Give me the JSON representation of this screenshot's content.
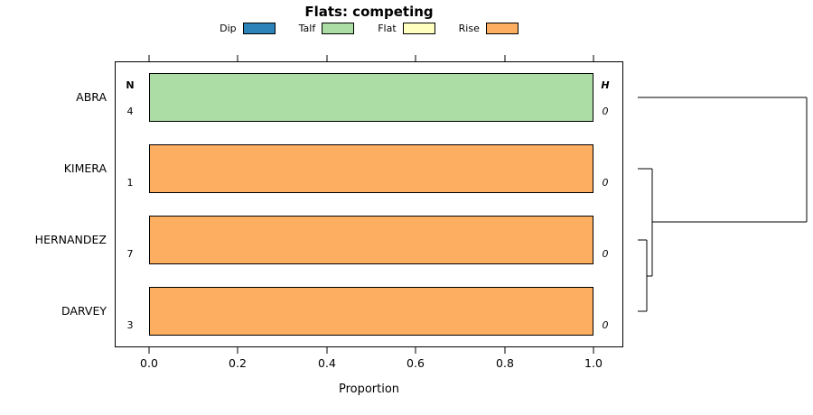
{
  "title": "Flats: competing",
  "legend": {
    "items": [
      {
        "label": "Dip",
        "color": "#2B83BA"
      },
      {
        "label": "Talf",
        "color": "#ABDDA4"
      },
      {
        "label": "Flat",
        "color": "#FFFFBF"
      },
      {
        "label": "Rise",
        "color": "#FDAE61"
      }
    ]
  },
  "columns": {
    "n_header": "N",
    "h_header": "H"
  },
  "rows": [
    {
      "name": "ABRA",
      "n": 4,
      "h": 0,
      "category": "Talf",
      "proportion": 1.0,
      "color": "#ABDDA4"
    },
    {
      "name": "KIMERA",
      "n": 1,
      "h": 0,
      "category": "Rise",
      "proportion": 1.0,
      "color": "#FDAE61"
    },
    {
      "name": "HERNANDEZ",
      "n": 7,
      "h": 0,
      "category": "Rise",
      "proportion": 1.0,
      "color": "#FDAE61"
    },
    {
      "name": "DARVEY",
      "n": 3,
      "h": 0,
      "category": "Rise",
      "proportion": 1.0,
      "color": "#FDAE61"
    }
  ],
  "x_axis": {
    "label": "Proportion",
    "ticks": [
      "0.0",
      "0.2",
      "0.4",
      "0.6",
      "0.8",
      "1.0"
    ]
  },
  "chart_data": {
    "type": "bar",
    "orientation": "horizontal",
    "stacked": true,
    "title": "Flats: competing",
    "categories": [
      "ABRA",
      "KIMERA",
      "HERNANDEZ",
      "DARVEY"
    ],
    "series": [
      {
        "name": "Dip",
        "color": "#2B83BA",
        "values": [
          0,
          0,
          0,
          0
        ]
      },
      {
        "name": "Talf",
        "color": "#ABDDA4",
        "values": [
          1.0,
          0,
          0,
          0
        ]
      },
      {
        "name": "Flat",
        "color": "#FFFFBF",
        "values": [
          0,
          0,
          0,
          0
        ]
      },
      {
        "name": "Rise",
        "color": "#FDAE61",
        "values": [
          0,
          1.0,
          1.0,
          1.0
        ]
      }
    ],
    "n_values": [
      4,
      1,
      7,
      3
    ],
    "h_values": [
      0,
      0,
      0,
      0
    ],
    "xlabel": "Proportion",
    "ylabel": "",
    "xlim": [
      0,
      1
    ],
    "x_ticks": [
      0.0,
      0.2,
      0.4,
      0.6,
      0.8,
      1.0
    ],
    "grid": false,
    "legend_position": "top",
    "dendrogram": {
      "side": "right",
      "merges": [
        {
          "clusters": [
            "HERNANDEZ",
            "DARVEY"
          ],
          "relative_height": 0.05
        },
        {
          "clusters": [
            "KIMERA",
            "HERNANDEZ+DARVEY"
          ],
          "relative_height": 0.09
        },
        {
          "clusters": [
            "ABRA",
            "KIMERA+HERNANDEZ+DARVEY"
          ],
          "relative_height": 1.0
        }
      ]
    }
  }
}
